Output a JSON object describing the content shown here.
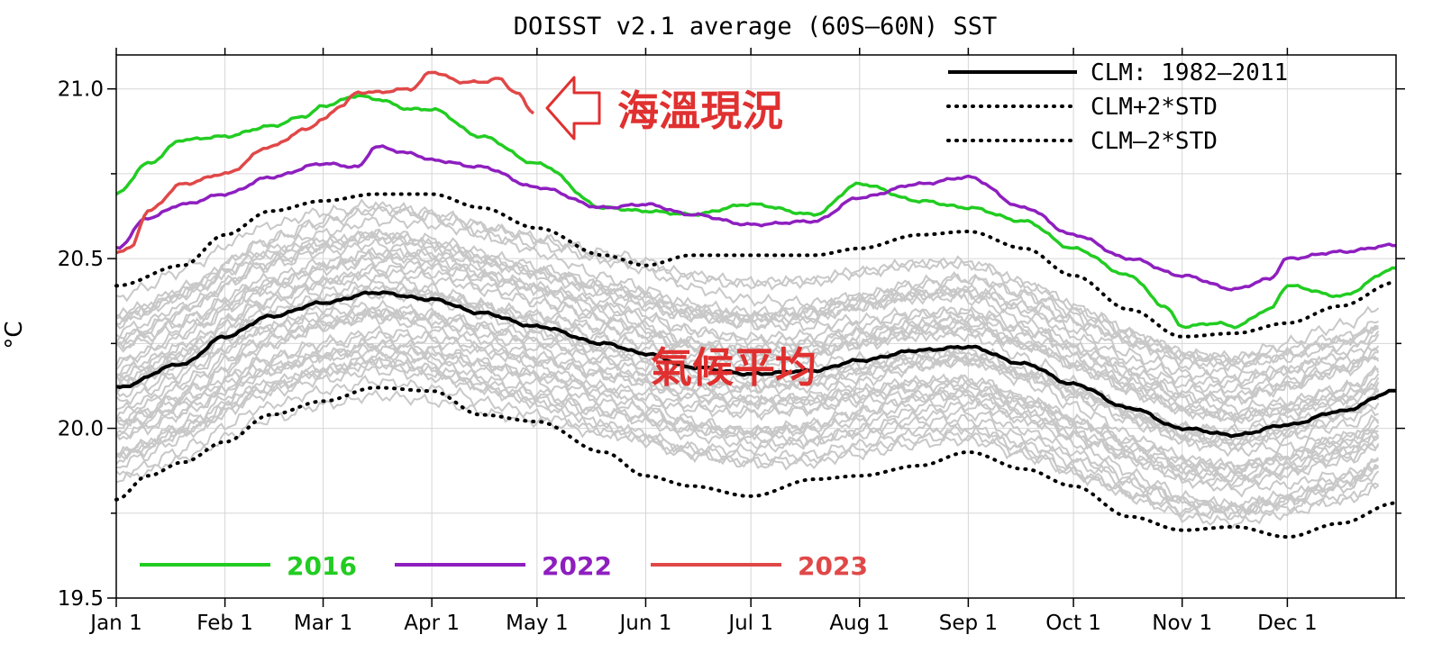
{
  "chart_data": {
    "type": "line",
    "title": "DOISST v2.1 average (60S–60N) SST",
    "ylabel": "°C",
    "ylim": [
      19.5,
      21.1
    ],
    "xlim": [
      1,
      366
    ],
    "yticks": [
      {
        "value": 19.5,
        "label": "19.5"
      },
      {
        "value": 20.0,
        "label": "20.0"
      },
      {
        "value": 20.5,
        "label": "20.5"
      },
      {
        "value": 21.0,
        "label": "21.0"
      }
    ],
    "yminor": [
      19.75,
      20.25,
      20.75
    ],
    "xticks": [
      {
        "day": 1,
        "label": "Jan 1"
      },
      {
        "day": 32,
        "label": "Feb 1"
      },
      {
        "day": 60,
        "label": "Mar 1"
      },
      {
        "day": 91,
        "label": "Apr 1"
      },
      {
        "day": 121,
        "label": "May 1"
      },
      {
        "day": 152,
        "label": "Jun 1"
      },
      {
        "day": 182,
        "label": "Jul 1"
      },
      {
        "day": 213,
        "label": "Aug 1"
      },
      {
        "day": 244,
        "label": "Sep 1"
      },
      {
        "day": 274,
        "label": "Oct 1"
      },
      {
        "day": 305,
        "label": "Nov 1"
      },
      {
        "day": 335,
        "label": "Dec 1"
      }
    ],
    "grid": true,
    "legend": {
      "placement": "top-right",
      "entries": [
        {
          "label": "CLM: 1982–2011",
          "style": "solid"
        },
        {
          "label": "CLM+2*STD",
          "style": "dotted"
        },
        {
          "label": "CLM–2*STD",
          "style": "dotted"
        }
      ]
    },
    "year_legend": {
      "placement": "bottom-left",
      "entries": [
        {
          "label": "2016",
          "color": "#22cc22"
        },
        {
          "label": "2022",
          "color": "#8e1fbf"
        },
        {
          "label": "2023",
          "color": "#e04848"
        }
      ]
    },
    "series": [
      {
        "name": "CLM: 1982–2011",
        "color": "#000000",
        "style": "solid",
        "x": [
          1,
          20,
          32,
          45,
          60,
          75,
          91,
          105,
          121,
          140,
          152,
          165,
          182,
          200,
          213,
          230,
          244,
          260,
          274,
          290,
          305,
          320,
          335,
          350,
          366
        ],
        "y": [
          20.12,
          20.19,
          20.27,
          20.33,
          20.37,
          20.4,
          20.38,
          20.34,
          20.3,
          20.25,
          20.22,
          20.18,
          20.16,
          20.17,
          20.2,
          20.23,
          20.24,
          20.19,
          20.13,
          20.06,
          20.0,
          19.98,
          20.01,
          20.05,
          20.11
        ]
      },
      {
        "name": "CLM+2*STD",
        "color": "#000000",
        "style": "dotted",
        "x": [
          1,
          20,
          32,
          45,
          60,
          75,
          91,
          105,
          121,
          140,
          152,
          165,
          182,
          200,
          213,
          230,
          244,
          260,
          274,
          290,
          305,
          320,
          335,
          350,
          366
        ],
        "y": [
          20.42,
          20.48,
          20.57,
          20.64,
          20.67,
          20.69,
          20.69,
          20.65,
          20.59,
          20.51,
          20.48,
          20.51,
          20.51,
          20.51,
          20.53,
          20.57,
          20.58,
          20.53,
          20.45,
          20.35,
          20.27,
          20.28,
          20.31,
          20.36,
          20.43
        ]
      },
      {
        "name": "CLM–2*STD",
        "color": "#000000",
        "style": "dotted",
        "x": [
          1,
          10,
          20,
          32,
          45,
          60,
          75,
          91,
          105,
          121,
          140,
          152,
          165,
          182,
          200,
          213,
          230,
          244,
          260,
          274,
          290,
          305,
          320,
          335,
          350,
          366
        ],
        "y": [
          19.79,
          19.86,
          19.9,
          19.96,
          20.04,
          20.08,
          20.12,
          20.11,
          20.04,
          20.02,
          19.93,
          19.86,
          19.83,
          19.8,
          19.85,
          19.86,
          19.89,
          19.93,
          19.88,
          19.83,
          19.74,
          19.7,
          19.71,
          19.68,
          19.72,
          19.78
        ]
      },
      {
        "name": "2016",
        "color": "#22cc22",
        "style": "solid",
        "x": [
          1,
          10,
          20,
          32,
          45,
          55,
          60,
          70,
          75,
          85,
          91,
          105,
          121,
          140,
          152,
          165,
          182,
          200,
          213,
          230,
          244,
          260,
          274,
          290,
          300,
          305,
          315,
          320,
          330,
          335,
          350,
          366
        ],
        "y": [
          20.69,
          20.78,
          20.85,
          20.86,
          20.89,
          20.92,
          20.95,
          20.98,
          20.97,
          20.94,
          20.94,
          20.86,
          20.78,
          20.65,
          20.64,
          20.63,
          20.66,
          20.63,
          20.72,
          20.67,
          20.65,
          20.61,
          20.53,
          20.45,
          20.36,
          20.3,
          20.31,
          20.3,
          20.35,
          20.42,
          20.39,
          20.47
        ]
      },
      {
        "name": "2022",
        "color": "#8e1fbf",
        "style": "solid",
        "x": [
          1,
          10,
          20,
          32,
          45,
          60,
          70,
          75,
          85,
          91,
          105,
          121,
          140,
          152,
          165,
          182,
          200,
          213,
          230,
          244,
          260,
          274,
          290,
          305,
          320,
          330,
          335,
          350,
          366
        ],
        "y": [
          20.53,
          20.62,
          20.66,
          20.69,
          20.74,
          20.78,
          20.77,
          20.83,
          20.81,
          20.79,
          20.77,
          20.71,
          20.65,
          20.66,
          20.63,
          20.6,
          20.61,
          20.68,
          20.72,
          20.74,
          20.65,
          20.57,
          20.5,
          20.45,
          20.41,
          20.44,
          20.5,
          20.52,
          20.54
        ]
      },
      {
        "name": "2023",
        "color": "#e04848",
        "style": "solid",
        "x": [
          1,
          5,
          10,
          20,
          32,
          45,
          55,
          60,
          65,
          70,
          75,
          85,
          91,
          100,
          105,
          110,
          115,
          120
        ],
        "y": [
          20.52,
          20.53,
          20.64,
          20.72,
          20.75,
          20.83,
          20.88,
          20.91,
          20.95,
          20.99,
          20.99,
          21.0,
          21.05,
          21.02,
          21.02,
          21.03,
          20.99,
          20.93
        ]
      }
    ],
    "annotations": [
      {
        "text": "海溫現況",
        "points_to": "2023"
      },
      {
        "text": "氣候平均",
        "points_to": "CLM: 1982–2011"
      }
    ]
  }
}
